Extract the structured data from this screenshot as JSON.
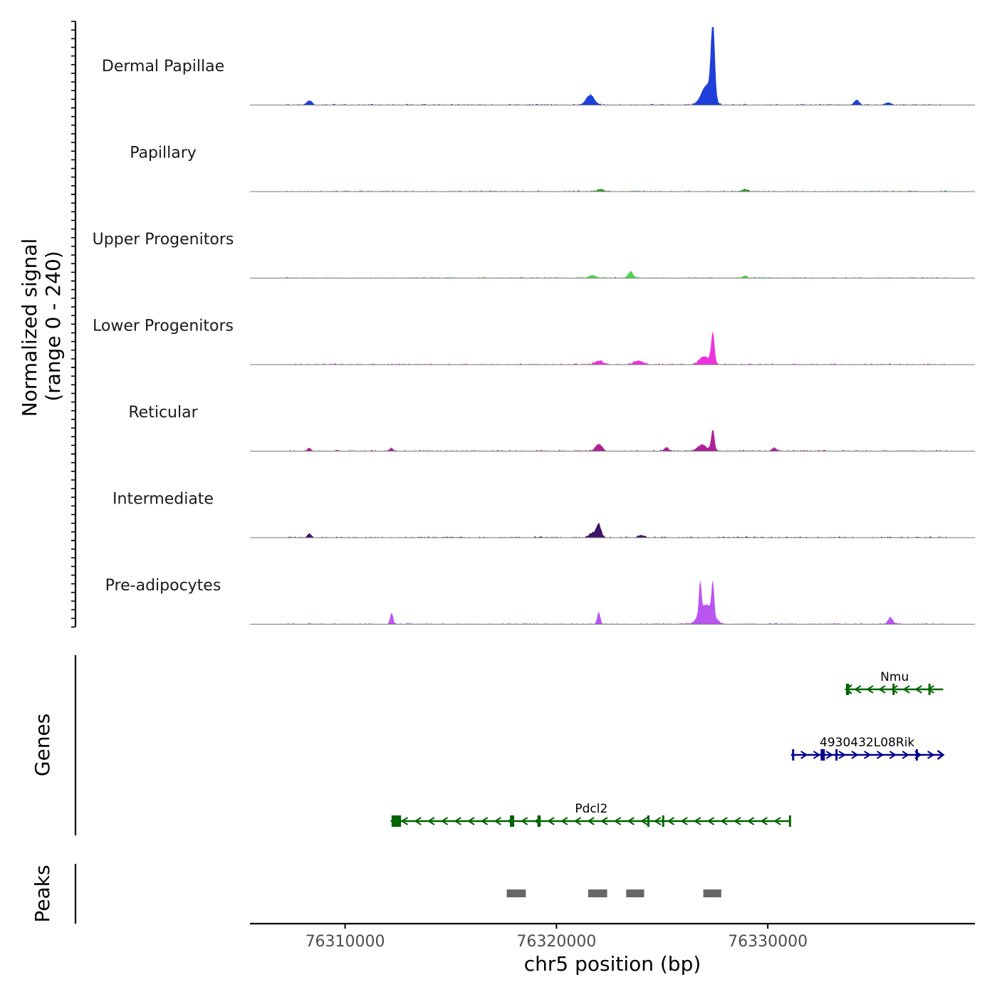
{
  "chart_data": {
    "type": "area",
    "title": "",
    "chromosome": "chr5",
    "xlabel": "chr5 position (bp)",
    "ylabel_line1": "Normalized signal",
    "ylabel_line2": "(range 0 - 240)",
    "ylim": [
      0,
      240
    ],
    "xlim": [
      76305500,
      76339800
    ],
    "x_ticks": [
      76310000,
      76320000,
      76330000
    ],
    "x_tick_labels": [
      "76310000",
      "76320000",
      "76330000"
    ],
    "series": [
      {
        "name": "Dermal Papillae",
        "color": "#1f3fdb",
        "peaks": [
          [
            76308300,
            14,
            120
          ],
          [
            76321600,
            30,
            200
          ],
          [
            76327400,
            240,
            90
          ],
          [
            76327100,
            60,
            250
          ],
          [
            76334200,
            16,
            120
          ],
          [
            76335700,
            8,
            150
          ]
        ],
        "noise_seed": 1
      },
      {
        "name": "Papillary",
        "color": "#2e9e2e",
        "peaks": [
          [
            76322100,
            8,
            150
          ],
          [
            76328900,
            7,
            120
          ]
        ],
        "noise_seed": 2
      },
      {
        "name": "Upper Progenitors",
        "color": "#4fd64f",
        "peaks": [
          [
            76321700,
            9,
            150
          ],
          [
            76323500,
            18,
            130
          ],
          [
            76328900,
            7,
            100
          ]
        ],
        "noise_seed": 3
      },
      {
        "name": "Lower Progenitors",
        "color": "#ee33dd",
        "peaks": [
          [
            76322000,
            12,
            180
          ],
          [
            76323900,
            12,
            220
          ],
          [
            76327400,
            95,
            80
          ],
          [
            76327000,
            25,
            220
          ]
        ],
        "noise_seed": 4
      },
      {
        "name": "Reticular",
        "color": "#b0209a",
        "peaks": [
          [
            76308300,
            10,
            90
          ],
          [
            76312200,
            9,
            80
          ],
          [
            76322000,
            22,
            150
          ],
          [
            76325200,
            10,
            120
          ],
          [
            76327400,
            65,
            80
          ],
          [
            76326900,
            20,
            200
          ],
          [
            76330300,
            10,
            120
          ]
        ],
        "noise_seed": 5
      },
      {
        "name": "Intermediate",
        "color": "#3d1466",
        "peaks": [
          [
            76308300,
            12,
            90
          ],
          [
            76322000,
            40,
            110
          ],
          [
            76321700,
            14,
            160
          ],
          [
            76324000,
            8,
            140
          ]
        ],
        "noise_seed": 6
      },
      {
        "name": "Pre-adipocytes",
        "color": "#bb55f2",
        "peaks": [
          [
            76312200,
            35,
            70
          ],
          [
            76322000,
            38,
            70
          ],
          [
            76326800,
            100,
            60
          ],
          [
            76327400,
            100,
            60
          ],
          [
            76327100,
            60,
            300
          ],
          [
            76335800,
            20,
            120
          ]
        ],
        "noise_seed": 7
      }
    ],
    "genes_label": "Genes",
    "genes": [
      {
        "name": "Nmu",
        "start": 76333700,
        "end": 76338300,
        "strand": "-",
        "color": "#006400",
        "row": 0,
        "exons": [
          [
            76333700,
            76333850
          ],
          [
            76335900,
            76335950
          ],
          [
            76337600,
            76337650
          ]
        ]
      },
      {
        "name": "4930432L08Rik",
        "start": 76331100,
        "end": 76338300,
        "strand": "+",
        "color": "#00008b",
        "row": 1,
        "exons": [
          [
            76331150,
            76331250
          ],
          [
            76332500,
            76332700
          ],
          [
            76333200,
            76333250
          ],
          [
            76337000,
            76337050
          ]
        ]
      },
      {
        "name": "Pdcl2",
        "start": 76312200,
        "end": 76331100,
        "strand": "-",
        "color": "#006400",
        "row": 2,
        "exons": [
          [
            76312200,
            76312650
          ],
          [
            76317800,
            76318000
          ],
          [
            76319100,
            76319250
          ],
          [
            76324300,
            76324380
          ],
          [
            76325000,
            76325100
          ],
          [
            76331000,
            76331100
          ]
        ]
      }
    ],
    "peaks_label": "Peaks",
    "peak_regions": [
      [
        76317650,
        76318550
      ],
      [
        76321500,
        76322400
      ],
      [
        76323300,
        76324150
      ],
      [
        76326950,
        76327800
      ]
    ]
  }
}
